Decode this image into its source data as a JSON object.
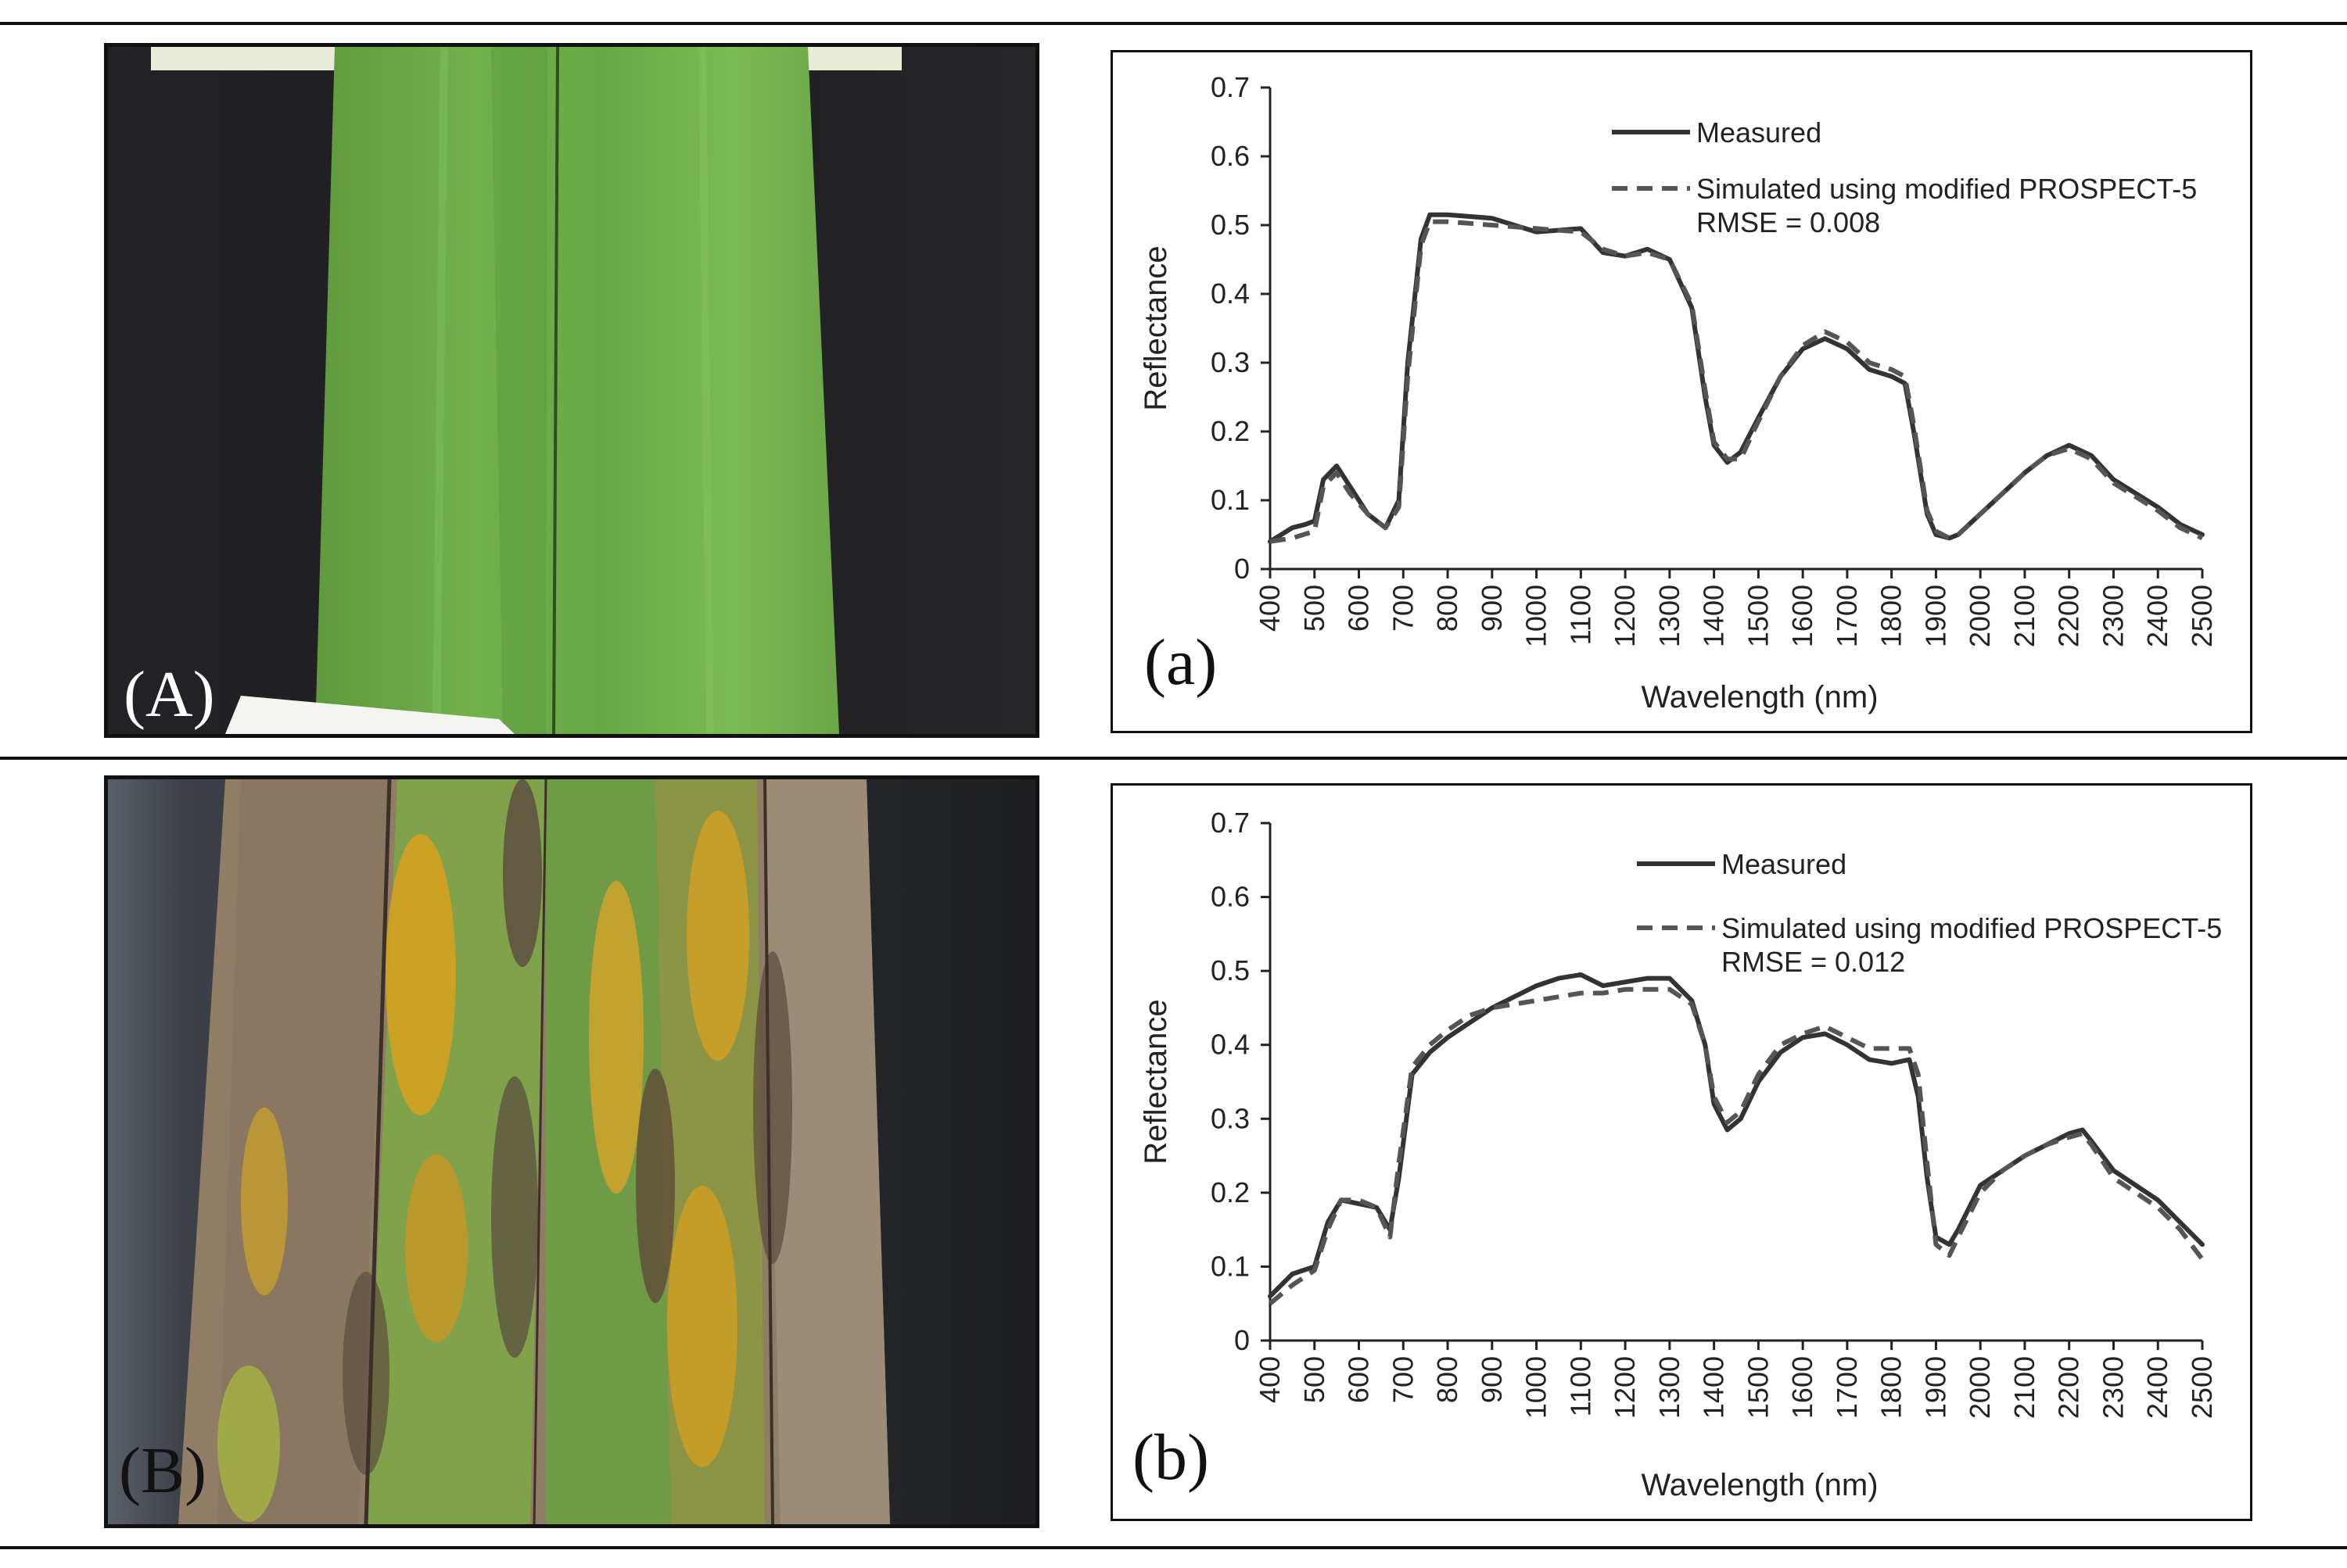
{
  "photos": [
    {
      "label": "(A)"
    },
    {
      "label": "(B)"
    }
  ],
  "chart_data": [
    {
      "type": "line",
      "panel_label": "(a)",
      "title": "",
      "xlabel": "Wavelength (nm)",
      "ylabel": "Reflectance",
      "xlim": [
        400,
        2500
      ],
      "ylim": [
        0,
        0.7
      ],
      "xticks": [
        "400",
        "500",
        "600",
        "700",
        "800",
        "900",
        "1000",
        "1100",
        "1200",
        "1300",
        "1400",
        "1500",
        "1600",
        "1700",
        "1800",
        "1900",
        "2000",
        "2100",
        "2200",
        "2300",
        "2400",
        "2500"
      ],
      "yticks": [
        "0",
        "0.1",
        "0.2",
        "0.3",
        "0.4",
        "0.5",
        "0.6",
        "0.7"
      ],
      "grid": false,
      "legend_position": "top-right",
      "annotation": "RMSE = 0.008",
      "series": [
        {
          "name": "Measured",
          "style": "solid",
          "color": "#333333",
          "x": [
            400,
            450,
            480,
            500,
            520,
            550,
            580,
            620,
            660,
            690,
            710,
            740,
            760,
            800,
            900,
            1000,
            1100,
            1150,
            1200,
            1250,
            1300,
            1350,
            1380,
            1400,
            1430,
            1460,
            1500,
            1550,
            1600,
            1650,
            1700,
            1750,
            1800,
            1830,
            1850,
            1880,
            1900,
            1930,
            1950,
            2000,
            2050,
            2100,
            2150,
            2200,
            2250,
            2300,
            2350,
            2400,
            2450,
            2500
          ],
          "y": [
            0.04,
            0.06,
            0.065,
            0.07,
            0.13,
            0.15,
            0.12,
            0.08,
            0.06,
            0.1,
            0.3,
            0.48,
            0.515,
            0.515,
            0.51,
            0.49,
            0.495,
            0.46,
            0.455,
            0.465,
            0.45,
            0.38,
            0.25,
            0.18,
            0.155,
            0.17,
            0.22,
            0.28,
            0.32,
            0.335,
            0.32,
            0.29,
            0.28,
            0.27,
            0.2,
            0.08,
            0.05,
            0.045,
            0.05,
            0.08,
            0.11,
            0.14,
            0.165,
            0.18,
            0.165,
            0.13,
            0.11,
            0.09,
            0.065,
            0.05
          ]
        },
        {
          "name": "Simulated using modified PROSPECT-5",
          "style": "dashed",
          "color": "#555555",
          "x": [
            400,
            450,
            500,
            520,
            550,
            580,
            620,
            660,
            690,
            710,
            740,
            760,
            800,
            900,
            1000,
            1100,
            1150,
            1200,
            1250,
            1300,
            1350,
            1380,
            1400,
            1430,
            1460,
            1500,
            1550,
            1600,
            1650,
            1700,
            1750,
            1800,
            1830,
            1850,
            1880,
            1900,
            1930,
            1950,
            2000,
            2050,
            2100,
            2150,
            2200,
            2250,
            2300,
            2350,
            2400,
            2450,
            2500
          ],
          "y": [
            0.04,
            0.045,
            0.055,
            0.12,
            0.14,
            0.11,
            0.08,
            0.06,
            0.09,
            0.28,
            0.47,
            0.505,
            0.505,
            0.5,
            0.495,
            0.49,
            0.465,
            0.455,
            0.46,
            0.45,
            0.385,
            0.26,
            0.185,
            0.16,
            0.16,
            0.215,
            0.28,
            0.325,
            0.345,
            0.33,
            0.3,
            0.29,
            0.28,
            0.21,
            0.085,
            0.055,
            0.045,
            0.05,
            0.08,
            0.11,
            0.14,
            0.165,
            0.175,
            0.16,
            0.125,
            0.105,
            0.085,
            0.06,
            0.045
          ]
        }
      ]
    },
    {
      "type": "line",
      "panel_label": "(b)",
      "title": "",
      "xlabel": "Wavelength (nm)",
      "ylabel": "Reflectance",
      "xlim": [
        400,
        2500
      ],
      "ylim": [
        0,
        0.7
      ],
      "xticks": [
        "400",
        "500",
        "600",
        "700",
        "800",
        "900",
        "1000",
        "1100",
        "1200",
        "1300",
        "1400",
        "1500",
        "1600",
        "1700",
        "1800",
        "1900",
        "2000",
        "2100",
        "2200",
        "2300",
        "2400",
        "2500"
      ],
      "yticks": [
        "0",
        "0.1",
        "0.2",
        "0.3",
        "0.4",
        "0.5",
        "0.6",
        "0.7"
      ],
      "grid": false,
      "legend_position": "top-right",
      "annotation": "RMSE = 0.012",
      "series": [
        {
          "name": "Measured",
          "style": "solid",
          "color": "#333333",
          "x": [
            400,
            450,
            500,
            530,
            560,
            600,
            640,
            670,
            690,
            720,
            760,
            800,
            850,
            900,
            950,
            1000,
            1050,
            1100,
            1150,
            1200,
            1250,
            1300,
            1350,
            1380,
            1400,
            1430,
            1460,
            1500,
            1550,
            1600,
            1650,
            1700,
            1750,
            1800,
            1840,
            1860,
            1880,
            1900,
            1930,
            1950,
            2000,
            2050,
            2100,
            2150,
            2200,
            2230,
            2250,
            2300,
            2350,
            2400,
            2450,
            2500
          ],
          "y": [
            0.06,
            0.09,
            0.1,
            0.16,
            0.19,
            0.185,
            0.18,
            0.15,
            0.22,
            0.36,
            0.39,
            0.41,
            0.43,
            0.45,
            0.465,
            0.48,
            0.49,
            0.495,
            0.48,
            0.485,
            0.49,
            0.49,
            0.46,
            0.4,
            0.32,
            0.285,
            0.3,
            0.35,
            0.39,
            0.41,
            0.415,
            0.4,
            0.38,
            0.375,
            0.38,
            0.33,
            0.22,
            0.14,
            0.13,
            0.15,
            0.21,
            0.23,
            0.25,
            0.265,
            0.28,
            0.285,
            0.27,
            0.23,
            0.21,
            0.19,
            0.16,
            0.13
          ]
        },
        {
          "name": "Simulated using modified PROSPECT-5",
          "style": "dashed",
          "color": "#555555",
          "x": [
            400,
            450,
            500,
            530,
            560,
            600,
            640,
            670,
            690,
            720,
            760,
            800,
            850,
            900,
            950,
            1000,
            1050,
            1100,
            1150,
            1200,
            1250,
            1300,
            1350,
            1380,
            1400,
            1430,
            1460,
            1500,
            1550,
            1600,
            1650,
            1700,
            1750,
            1800,
            1840,
            1860,
            1880,
            1900,
            1930,
            1950,
            2000,
            2050,
            2100,
            2150,
            2200,
            2230,
            2250,
            2300,
            2350,
            2400,
            2450,
            2500
          ],
          "y": [
            0.05,
            0.075,
            0.095,
            0.15,
            0.19,
            0.19,
            0.18,
            0.14,
            0.24,
            0.37,
            0.4,
            0.42,
            0.44,
            0.45,
            0.455,
            0.46,
            0.465,
            0.47,
            0.47,
            0.475,
            0.475,
            0.475,
            0.455,
            0.4,
            0.33,
            0.295,
            0.31,
            0.36,
            0.4,
            0.415,
            0.425,
            0.41,
            0.395,
            0.395,
            0.395,
            0.36,
            0.24,
            0.13,
            0.115,
            0.14,
            0.2,
            0.23,
            0.25,
            0.265,
            0.275,
            0.28,
            0.265,
            0.22,
            0.2,
            0.18,
            0.15,
            0.11
          ]
        }
      ]
    }
  ]
}
